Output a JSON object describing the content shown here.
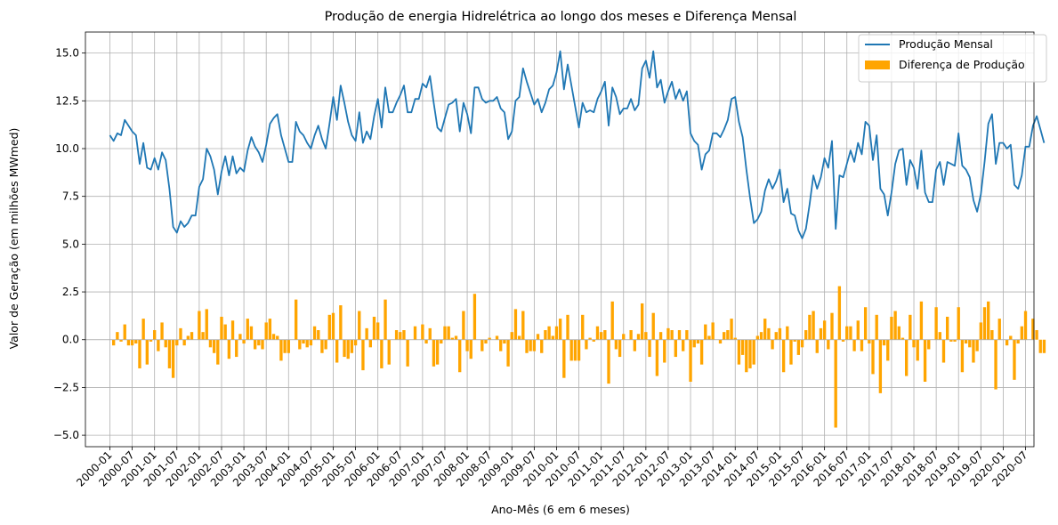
{
  "chart_data": {
    "type": "line+bar",
    "title": "Produção de energia Hidrelétrica ao longo dos meses e Diferença Mensal",
    "xlabel": "Ano-Mês (6 em 6 meses)",
    "ylabel": "Valor de Geração (em milhões MWmed)",
    "ylim": [
      -5.6,
      16.1
    ],
    "yticks": [
      -5.0,
      -2.5,
      0.0,
      2.5,
      5.0,
      7.5,
      10.0,
      12.5,
      15.0
    ],
    "ytick_labels": [
      "−5.0",
      "−2.5",
      "0.0",
      "2.5",
      "5.0",
      "7.5",
      "10.0",
      "12.5",
      "15.0"
    ],
    "xticks": [
      "2000-01",
      "2000-07",
      "2001-01",
      "2001-07",
      "2002-01",
      "2002-07",
      "2003-01",
      "2003-07",
      "2004-01",
      "2004-07",
      "2005-01",
      "2005-07",
      "2006-01",
      "2006-07",
      "2007-01",
      "2007-07",
      "2008-01",
      "2008-07",
      "2009-01",
      "2009-07",
      "2010-01",
      "2010-07",
      "2011-01",
      "2011-07",
      "2012-01",
      "2012-07",
      "2013-01",
      "2013-07",
      "2014-01",
      "2014-07",
      "2015-01",
      "2015-07",
      "2016-01",
      "2016-07",
      "2017-01",
      "2017-07",
      "2018-01",
      "2018-07",
      "2019-01",
      "2019-07",
      "2020-01",
      "2020-07"
    ],
    "grid": true,
    "legend_position": "top-right",
    "line_color": "#1f77b4",
    "bar_color": "#ffa500",
    "series": [
      {
        "name": "Produção Mensal",
        "kind": "line",
        "values": [
          10.7,
          10.4,
          10.8,
          10.7,
          11.5,
          11.2,
          10.9,
          10.7,
          9.2,
          10.3,
          9.0,
          8.9,
          9.5,
          8.9,
          9.8,
          9.4,
          7.9,
          5.9,
          5.6,
          6.2,
          5.9,
          6.1,
          6.5,
          6.5,
          8.0,
          8.4,
          10.0,
          9.6,
          8.9,
          7.6,
          8.8,
          9.6,
          8.6,
          9.6,
          8.7,
          9.0,
          8.8,
          9.9,
          10.6,
          10.1,
          9.8,
          9.3,
          10.2,
          11.3,
          11.6,
          11.8,
          10.7,
          10.0,
          9.3,
          9.3,
          11.4,
          10.9,
          10.7,
          10.3,
          10.0,
          10.7,
          11.2,
          10.5,
          10.0,
          11.3,
          12.7,
          11.5,
          13.3,
          12.4,
          11.4,
          10.7,
          10.4,
          11.9,
          10.3,
          10.9,
          10.5,
          11.7,
          12.6,
          11.1,
          13.2,
          11.9,
          11.9,
          12.4,
          12.8,
          13.3,
          11.9,
          11.9,
          12.6,
          12.6,
          13.4,
          13.2,
          13.8,
          12.4,
          11.1,
          10.9,
          11.6,
          12.3,
          12.4,
          12.6,
          10.9,
          12.4,
          11.8,
          10.8,
          13.2,
          13.2,
          12.6,
          12.4,
          12.5,
          12.5,
          12.7,
          12.1,
          11.9,
          10.5,
          10.9,
          12.5,
          12.7,
          14.2,
          13.5,
          12.9,
          12.3,
          12.6,
          11.9,
          12.4,
          13.1,
          13.3,
          14.0,
          15.1,
          13.1,
          14.4,
          13.3,
          12.2,
          11.1,
          12.4,
          11.9,
          12.0,
          11.9,
          12.6,
          13.0,
          13.5,
          11.2,
          13.2,
          12.7,
          11.8,
          12.1,
          12.1,
          12.6,
          12.0,
          12.3,
          14.2,
          14.6,
          13.7,
          15.1,
          13.2,
          13.6,
          12.4,
          13.0,
          13.5,
          12.6,
          13.1,
          12.5,
          13.0,
          10.8,
          10.4,
          10.2,
          8.9,
          9.7,
          9.9,
          10.8,
          10.8,
          10.6,
          11.0,
          11.5,
          12.6,
          12.7,
          11.4,
          10.6,
          8.9,
          7.4,
          6.1,
          6.3,
          6.7,
          7.8,
          8.4,
          7.9,
          8.3,
          8.9,
          7.2,
          7.9,
          6.6,
          6.5,
          5.7,
          5.3,
          5.8,
          7.1,
          8.6,
          7.9,
          8.5,
          9.5,
          9.0,
          10.4,
          5.8,
          8.6,
          8.5,
          9.2,
          9.9,
          9.3,
          10.3,
          9.7,
          11.4,
          11.2,
          9.4,
          10.7,
          7.9,
          7.6,
          6.5,
          7.7,
          9.2,
          9.9,
          10.0,
          8.1,
          9.4,
          9.0,
          7.9,
          9.9,
          7.7,
          7.2,
          7.2,
          8.9,
          9.3,
          8.1,
          9.3,
          9.2,
          9.1,
          10.8,
          9.1,
          8.9,
          8.5,
          7.3,
          6.7,
          7.6,
          9.3,
          11.3,
          11.8,
          9.2,
          10.3,
          10.3,
          10.0,
          10.2,
          8.1,
          7.9,
          8.6,
          10.1,
          10.1,
          11.2,
          11.7,
          11.0,
          10.3
        ]
      },
      {
        "name": "Diferença de Produção",
        "kind": "bar",
        "values": [
          0.0,
          -0.3,
          0.4,
          -0.1,
          0.8,
          -0.3,
          -0.3,
          -0.2,
          -1.5,
          1.1,
          -1.3,
          -0.1,
          0.5,
          -0.6,
          0.9,
          -0.4,
          -1.5,
          -2.0,
          -0.3,
          0.6,
          -0.3,
          0.2,
          0.4,
          0.0,
          1.5,
          0.4,
          1.6,
          -0.4,
          -0.7,
          -1.3,
          1.2,
          0.8,
          -1.0,
          1.0,
          -0.9,
          0.3,
          -0.2,
          1.1,
          0.7,
          -0.5,
          -0.3,
          -0.5,
          0.9,
          1.1,
          0.3,
          0.2,
          -1.1,
          -0.7,
          -0.7,
          0.0,
          2.1,
          -0.5,
          -0.2,
          -0.4,
          -0.3,
          0.7,
          0.5,
          -0.7,
          -0.5,
          1.3,
          1.4,
          -1.2,
          1.8,
          -0.9,
          -1.0,
          -0.7,
          -0.3,
          1.5,
          -1.6,
          0.6,
          -0.4,
          1.2,
          0.9,
          -1.5,
          2.1,
          -1.3,
          0.0,
          0.5,
          0.4,
          0.5,
          -1.4,
          0.0,
          0.7,
          0.0,
          0.8,
          -0.2,
          0.6,
          -1.4,
          -1.3,
          -0.2,
          0.7,
          0.7,
          0.1,
          0.2,
          -1.7,
          1.5,
          -0.6,
          -1.0,
          2.4,
          0.0,
          -0.6,
          -0.2,
          0.1,
          0.0,
          0.2,
          -0.6,
          -0.2,
          -1.4,
          0.4,
          1.6,
          0.2,
          1.5,
          -0.7,
          -0.6,
          -0.6,
          0.3,
          -0.7,
          0.5,
          0.7,
          0.2,
          0.7,
          1.1,
          -2.0,
          1.3,
          -1.1,
          -1.1,
          -1.1,
          1.3,
          -0.5,
          0.1,
          -0.1,
          0.7,
          0.4,
          0.5,
          -2.3,
          2.0,
          -0.5,
          -0.9,
          0.3,
          0.0,
          0.5,
          -0.6,
          0.3,
          1.9,
          0.4,
          -0.9,
          1.4,
          -1.9,
          0.4,
          -1.2,
          0.6,
          0.5,
          -0.9,
          0.5,
          -0.6,
          0.5,
          -2.2,
          -0.4,
          -0.2,
          -1.3,
          0.8,
          0.2,
          0.9,
          0.0,
          -0.2,
          0.4,
          0.5,
          1.1,
          0.1,
          -1.3,
          -0.8,
          -1.7,
          -1.5,
          -1.3,
          0.2,
          0.4,
          1.1,
          0.6,
          -0.5,
          0.4,
          0.6,
          -1.7,
          0.7,
          -1.3,
          -0.1,
          -0.8,
          -0.4,
          0.5,
          1.3,
          1.5,
          -0.7,
          0.6,
          1.0,
          -0.5,
          1.4,
          -4.6,
          2.8,
          -0.1,
          0.7,
          0.7,
          -0.6,
          1.0,
          -0.6,
          1.7,
          -0.2,
          -1.8,
          1.3,
          -2.8,
          -0.3,
          -1.1,
          1.2,
          1.5,
          0.7,
          0.1,
          -1.9,
          1.3,
          -0.4,
          -1.1,
          2.0,
          -2.2,
          -0.5,
          0.0,
          1.7,
          0.4,
          -1.2,
          1.2,
          -0.1,
          -0.1,
          1.7,
          -1.7,
          -0.2,
          -0.4,
          -1.2,
          -0.6,
          0.9,
          1.7,
          2.0,
          0.5,
          -2.6,
          1.1,
          0.0,
          -0.3,
          0.2,
          -2.1,
          -0.2,
          0.7,
          1.5,
          0.0,
          1.1,
          0.5,
          -0.7,
          -0.7
        ]
      }
    ]
  }
}
